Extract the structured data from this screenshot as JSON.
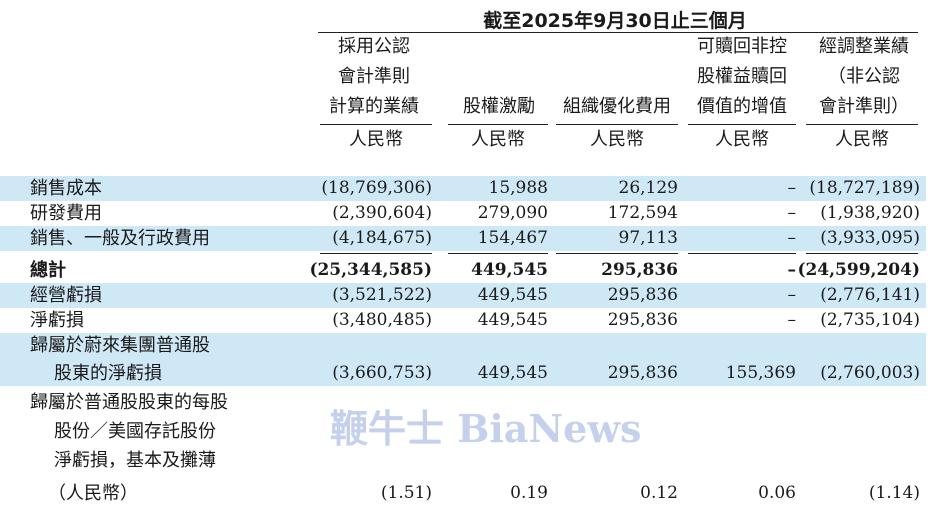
{
  "period_header": "截至2025年9月30日止三個月",
  "columns": [
    {
      "header": "採用公認\n會計準則\n計算的業績",
      "unit": "人民幣"
    },
    {
      "header": "股權激勵",
      "unit": "人民幣"
    },
    {
      "header": "組織優化費用",
      "unit": "人民幣"
    },
    {
      "header": "可贖回非控\n股權益贖回\n價值的增值",
      "unit": "人民幣"
    },
    {
      "header": "經調整業績\n（非公認\n會計準則）",
      "unit": "人民幣"
    }
  ],
  "rows": [
    {
      "label": "銷售成本",
      "values": [
        "(18,769,306)",
        "15,988",
        "26,129",
        "–",
        "(18,727,189)"
      ]
    },
    {
      "label": "研發費用",
      "values": [
        "(2,390,604)",
        "279,090",
        "172,594",
        "–",
        "(1,938,920)"
      ]
    },
    {
      "label": "銷售、一般及行政費用",
      "values": [
        "(4,184,675)",
        "154,467",
        "97,113",
        "–",
        "(3,933,095)"
      ]
    },
    {
      "label": "總計",
      "values": [
        "(25,344,585)",
        "449,545",
        "295,836",
        "–",
        "(24,599,204)"
      ]
    },
    {
      "label": "經營虧損",
      "values": [
        "(3,521,522)",
        "449,545",
        "295,836",
        "–",
        "(2,776,141)"
      ]
    },
    {
      "label": "淨虧損",
      "values": [
        "(3,480,485)",
        "449,545",
        "295,836",
        "–",
        "(2,735,104)"
      ]
    },
    {
      "label_lines": [
        "歸屬於蔚來集團普通股",
        "股東的淨虧損"
      ],
      "values": [
        "(3,660,753)",
        "449,545",
        "295,836",
        "155,369",
        "(2,760,003)"
      ]
    },
    {
      "label_lines": [
        "歸屬於普通股股東的每股",
        "股份／美國存託股份",
        "淨虧損，基本及攤薄",
        "（人民幣）"
      ],
      "values": [
        "(1.51)",
        "0.19",
        "0.12",
        "0.06",
        "(1.14)"
      ]
    }
  ],
  "watermark": "鞭牛士 BiaNews"
}
